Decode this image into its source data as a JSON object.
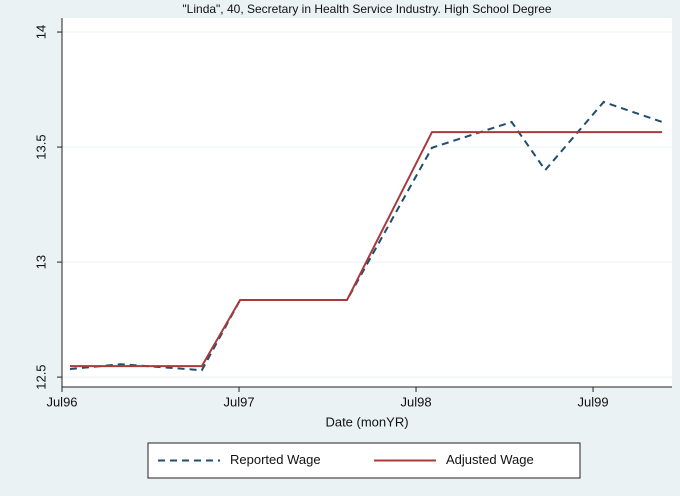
{
  "chart_data": {
    "type": "line",
    "title": "\"Linda\", 40, Secretary in Health Service Industry. High School Degree",
    "x_label": "Date (monYR)",
    "x": [
      1996.545,
      1996.83,
      1997.29,
      1997.506,
      1998.11,
      1998.59,
      1999.04,
      1999.23,
      1999.56,
      1999.89
    ],
    "series": [
      {
        "name": "Reported Wage",
        "color": "#1f4e6e",
        "dash": true,
        "values": [
          12.535,
          12.556,
          12.53,
          12.835,
          12.835,
          13.497,
          13.609,
          13.4,
          13.696,
          13.609
        ]
      },
      {
        "name": "Adjusted Wage",
        "color": "#a83a3a",
        "dash": false,
        "values": [
          12.548,
          12.548,
          12.548,
          12.835,
          12.835,
          13.565,
          13.565,
          13.565,
          13.565,
          13.565
        ]
      }
    ],
    "xlim": [
      1996.5,
      1999.946
    ],
    "xticks": [
      {
        "value": 1996.5,
        "label": "Jul96"
      },
      {
        "value": 1997.5,
        "label": "Jul97"
      },
      {
        "value": 1998.5,
        "label": "Jul98"
      },
      {
        "value": 1999.5,
        "label": "Jul99"
      }
    ],
    "ylim": [
      12.457,
      14.061
    ],
    "yticks": [
      12.5,
      13,
      13.5,
      14
    ],
    "grid": true,
    "legend": "bottom"
  }
}
